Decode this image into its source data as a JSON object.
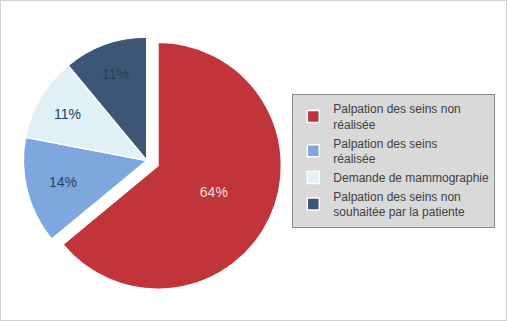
{
  "chart_data": {
    "type": "pie",
    "categories": [
      "Palpation des seins non réalisée",
      "Palpation des seins réalisée",
      "Demande de mammographie",
      "Palpation des seins non souhaitée par la patiente"
    ],
    "values": [
      64,
      14,
      11,
      11
    ],
    "value_labels": [
      "64%",
      "14%",
      "11%",
      "11%"
    ],
    "colors": [
      "#c0343a",
      "#7ea6df",
      "#e1eff6",
      "#3e5675"
    ],
    "data_labels": true,
    "legend": "right"
  }
}
